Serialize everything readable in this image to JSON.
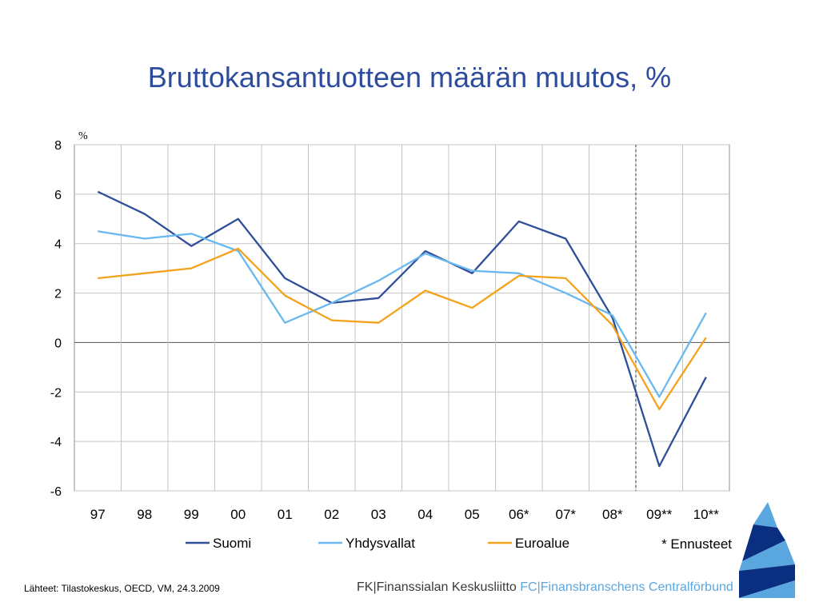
{
  "page": {
    "title": "Bruttokansantuotteen määrän muutos, %",
    "source": "Lähteet: Tilastokeskus, OECD, VM, 24.3.2009",
    "brand_fi": "FK|Finanssialan Keskusliitto",
    "brand_sv": "FC|Finansbranschens Centralförbund",
    "colors": {
      "title": "#2e4c9e",
      "brand_fi": "#3a3a3a",
      "brand_sv": "#5aa7e0"
    }
  },
  "chart_data": {
    "type": "line",
    "title": "",
    "ylabel": "%",
    "xlabel": "",
    "categories": [
      "97",
      "98",
      "99",
      "00",
      "01",
      "02",
      "03",
      "04",
      "05",
      "06*",
      "07*",
      "08*",
      "09**",
      "10**"
    ],
    "ylim": [
      -6,
      8
    ],
    "yticks": [
      -6,
      -4,
      -2,
      0,
      2,
      4,
      6,
      8
    ],
    "grid": true,
    "forecast_divider_after": "08*",
    "legend_position": "bottom",
    "footnote": "* Ennusteet",
    "series": [
      {
        "name": "Suomi",
        "color": "#2f4f9a",
        "values": [
          6.1,
          5.2,
          3.9,
          5.0,
          2.6,
          1.6,
          1.8,
          3.7,
          2.8,
          4.9,
          4.2,
          1.0,
          -5.0,
          -1.4
        ]
      },
      {
        "name": "Yhdysvallat",
        "color": "#6ab8f0",
        "values": [
          4.5,
          4.2,
          4.4,
          3.7,
          0.8,
          1.6,
          2.5,
          3.6,
          2.9,
          2.8,
          2.0,
          1.1,
          -2.2,
          1.2
        ]
      },
      {
        "name": "Euroalue",
        "color": "#f5a21b",
        "values": [
          2.6,
          2.8,
          3.0,
          3.8,
          1.9,
          0.9,
          0.8,
          2.1,
          1.4,
          2.7,
          2.6,
          0.7,
          -2.7,
          0.2
        ]
      }
    ]
  }
}
